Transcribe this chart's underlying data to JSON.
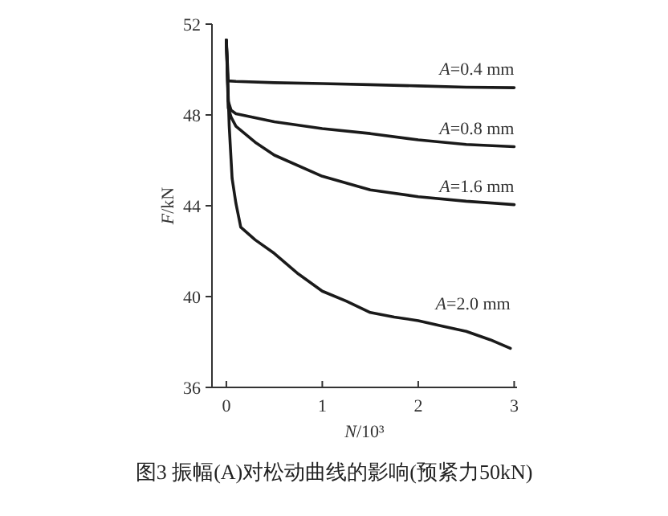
{
  "chart_data": {
    "type": "line",
    "xlabel": "N/10³",
    "ylabel": "F/kN",
    "xlim": [
      -0.15,
      3.03
    ],
    "ylim": [
      36,
      52
    ],
    "xticks": [
      0,
      1,
      2,
      3
    ],
    "yticks": [
      36,
      40,
      44,
      48,
      52
    ],
    "series": [
      {
        "name": "A=0.4 mm",
        "color": "#1a1a1a",
        "x": [
          0,
          0.02,
          0.1,
          0.5,
          1,
          1.5,
          2,
          2.5,
          3
        ],
        "values": [
          51.3,
          49.5,
          49.48,
          49.42,
          49.38,
          49.33,
          49.28,
          49.22,
          49.2
        ]
      },
      {
        "name": "A=0.8 mm",
        "color": "#1a1a1a",
        "x": [
          0,
          0.02,
          0.05,
          0.1,
          0.5,
          1,
          1.5,
          2,
          2.5,
          3
        ],
        "values": [
          51.3,
          48.6,
          48.2,
          48.05,
          47.7,
          47.4,
          47.18,
          46.9,
          46.7,
          46.6
        ]
      },
      {
        "name": "A=1.6 mm",
        "color": "#1a1a1a",
        "x": [
          0,
          0.02,
          0.05,
          0.1,
          0.3,
          0.5,
          1,
          1.5,
          2,
          2.5,
          3
        ],
        "values": [
          51.3,
          48.3,
          47.9,
          47.5,
          46.8,
          46.23,
          45.3,
          44.7,
          44.4,
          44.2,
          44.05
        ]
      },
      {
        "name": "A=2.0 mm",
        "color": "#1a1a1a",
        "x": [
          0,
          0.03,
          0.06,
          0.1,
          0.15,
          0.3,
          0.5,
          0.75,
          1,
          1.25,
          1.5,
          1.75,
          2,
          2.25,
          2.5,
          2.75,
          2.96
        ],
        "values": [
          51.3,
          47.5,
          45.2,
          44.1,
          43.06,
          42.5,
          41.9,
          41.0,
          40.24,
          39.8,
          39.3,
          39.1,
          38.94,
          38.7,
          38.47,
          38.1,
          37.72
        ]
      }
    ],
    "annotations": [
      "图3 振幅(A)对松动曲线的影响(预紧力50kN)"
    ]
  }
}
